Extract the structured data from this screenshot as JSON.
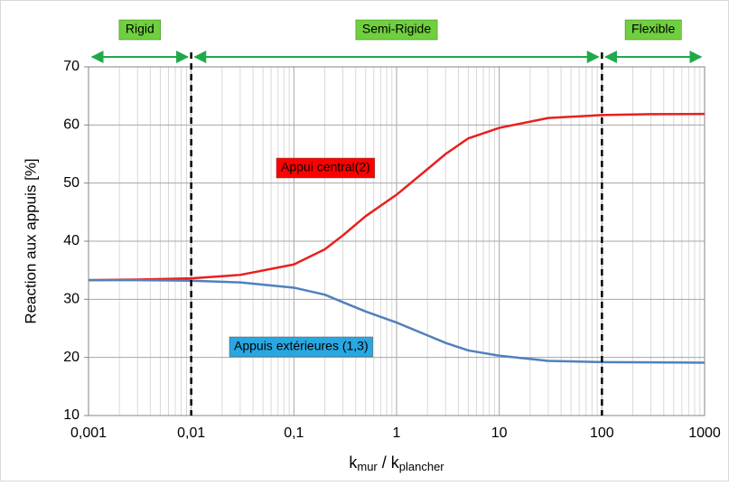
{
  "chart_data": {
    "type": "line",
    "ylabel": "Reaction aux appuis [%]",
    "xlabel": {
      "k1": "k",
      "sub1": "mur",
      "sep": " / ",
      "k2": "k",
      "sub2": "plancher"
    },
    "log_x": true,
    "xlim": [
      0.001,
      1000
    ],
    "xticks": [
      {
        "value": 0.001,
        "label": "0,001"
      },
      {
        "value": 0.01,
        "label": "0,01"
      },
      {
        "value": 0.1,
        "label": "0,1"
      },
      1,
      10,
      100,
      1000
    ],
    "xminorticks": [
      0.002,
      0.003,
      0.004,
      0.005,
      0.006,
      0.007,
      0.008,
      0.009,
      0.02,
      0.03,
      0.04,
      0.05,
      0.06,
      0.07,
      0.08,
      0.09,
      0.2,
      0.3,
      0.4,
      0.5,
      0.6,
      0.7,
      0.8,
      0.9,
      2,
      3,
      4,
      5,
      6,
      7,
      8,
      9,
      20,
      30,
      40,
      50,
      60,
      70,
      80,
      90,
      200,
      300,
      400,
      500,
      600,
      700,
      800,
      900
    ],
    "ylim": [
      10,
      70
    ],
    "yticks": [
      10,
      20,
      30,
      40,
      50,
      60,
      70
    ],
    "grid": true,
    "x": [
      0.001,
      0.003,
      0.01,
      0.03,
      0.1,
      0.2,
      0.3,
      0.5,
      1,
      2,
      3,
      5,
      10,
      30,
      100,
      300,
      1000
    ],
    "series": [
      {
        "name": "Appui central(2)",
        "color": "#e8201e",
        "label_color": "#ff0000",
        "values": [
          33.3,
          33.4,
          33.6,
          34.2,
          36,
          38.6,
          41,
          44.3,
          48,
          52.4,
          55,
          57.7,
          59.5,
          61.2,
          61.7,
          61.85,
          61.9
        ]
      },
      {
        "name": "Appuis extérieures (1,3)",
        "color": "#4f81bd",
        "label_color": "#29a7e1",
        "values": [
          33.3,
          33.3,
          33.2,
          32.9,
          32,
          30.8,
          29.5,
          27.9,
          26,
          23.8,
          22.5,
          21.2,
          20.3,
          19.4,
          19.2,
          19.15,
          19.1
        ]
      }
    ],
    "boundaries": [
      0.01,
      100
    ],
    "regions": [
      {
        "label": "Rigid",
        "range": [
          0.001,
          0.01
        ]
      },
      {
        "label": "Semi-Rigide",
        "range": [
          0.01,
          100
        ]
      },
      {
        "label": "Flexible",
        "range": [
          100,
          1000
        ]
      }
    ],
    "region_color": "#6fcf3f",
    "arrow_color": "#1faa4a"
  }
}
